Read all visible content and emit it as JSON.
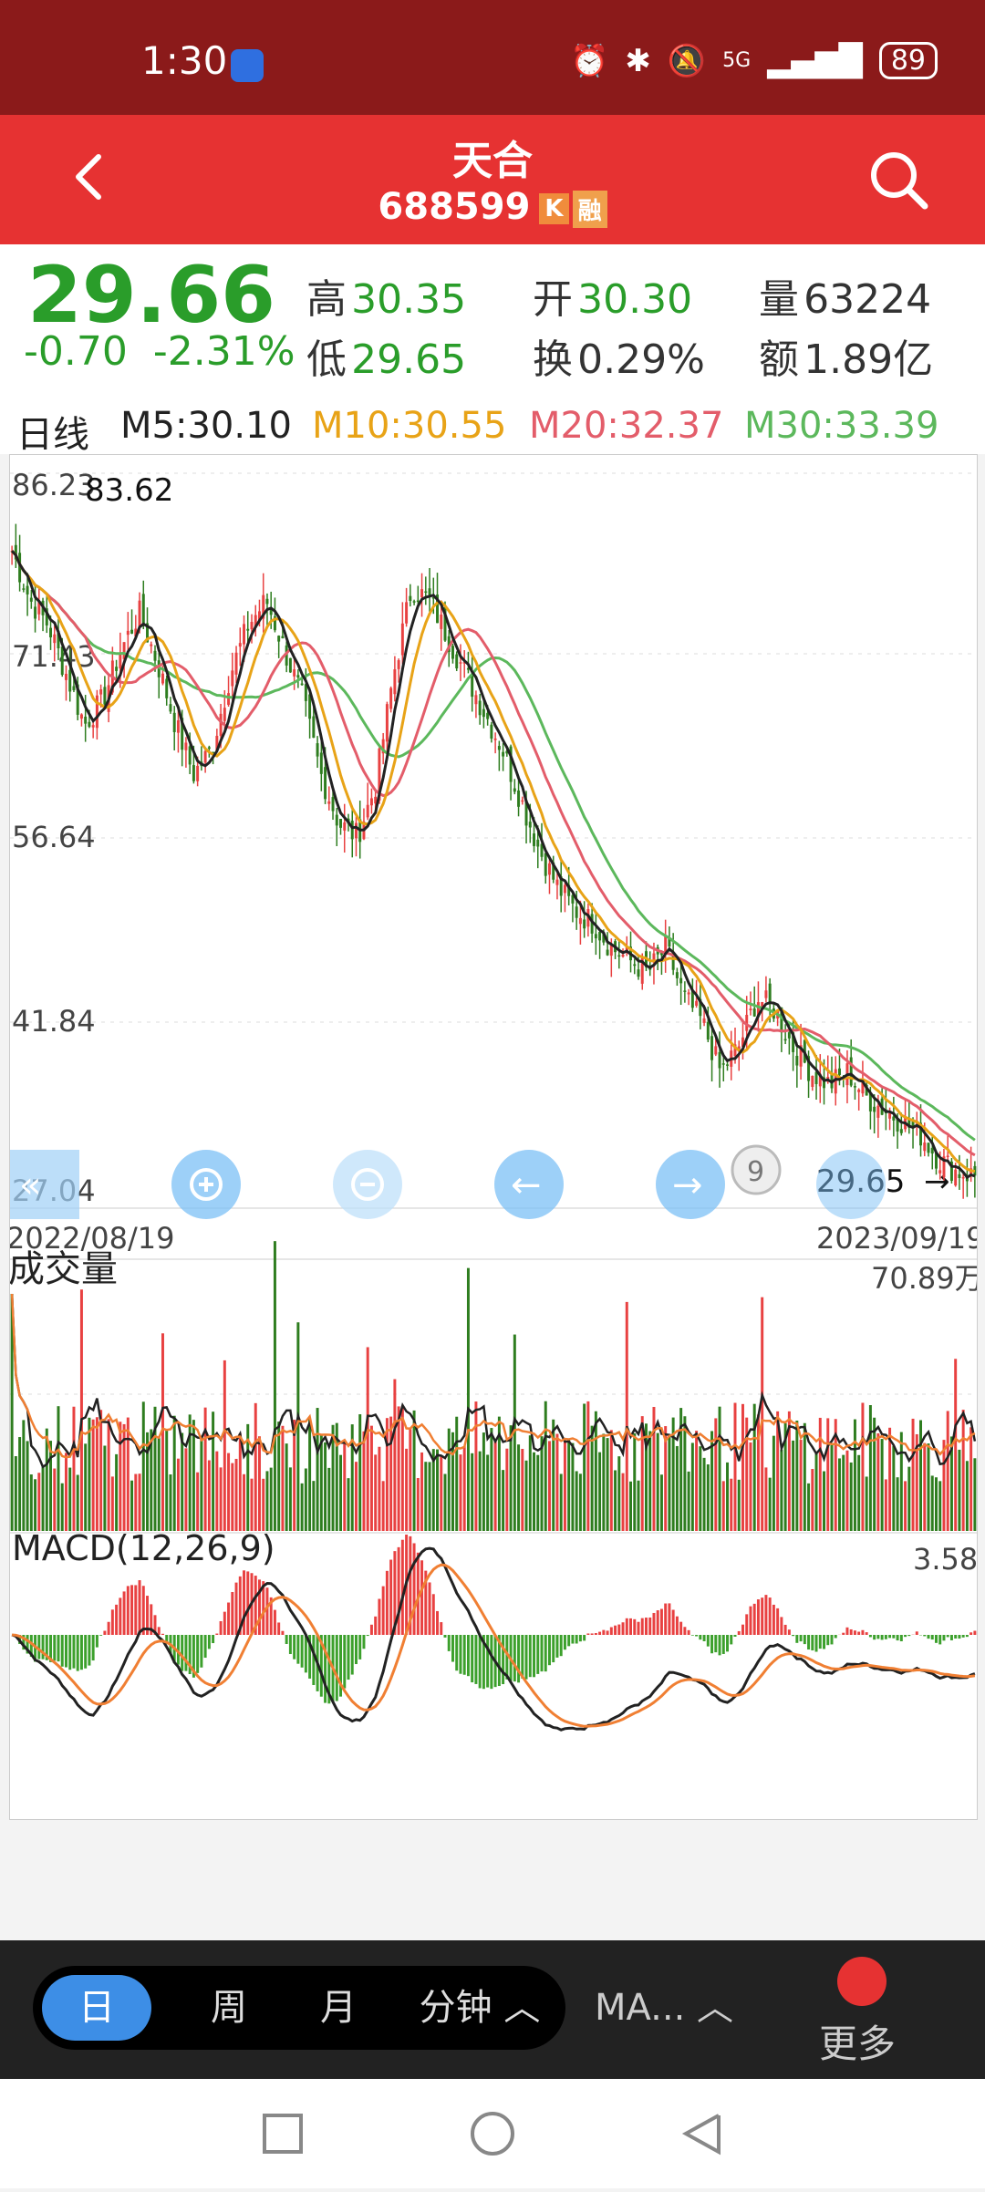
{
  "status_bar": {
    "time": "1:30",
    "network": "5G",
    "battery": "89"
  },
  "header": {
    "stock_name": "天合",
    "stock_code": "688599",
    "tag_k": "K",
    "tag_rong": "融"
  },
  "quote": {
    "price": "29.66",
    "change": "-0.70",
    "change_pct": "-2.31%",
    "high_label": "高",
    "high": "30.35",
    "low_label": "低",
    "low": "29.65",
    "open_label": "开",
    "open": "30.30",
    "turnover_label": "换",
    "turnover": "0.29%",
    "volume_label": "量",
    "volume": "63224",
    "amount_label": "额",
    "amount": "1.89亿"
  },
  "ma_legend": {
    "period": "日线",
    "m5": "M5:30.10",
    "m10": "M10:30.55",
    "m20": "M20:32.37",
    "m30": "M30:33.39",
    "colors": {
      "m5": "#222222",
      "m10": "#e8a317",
      "m20": "#e35d6a",
      "m30": "#5cb85c"
    }
  },
  "chart_data": [
    {
      "type": "candlestick",
      "y_ticks": [
        "86.23",
        "71.43",
        "56.64",
        "41.84",
        "27.04"
      ],
      "max_label": "83.62",
      "min_label": "29.65",
      "start_date": "2022/08/19",
      "end_date": "2023/09/19",
      "ylim": [
        27.04,
        86.23
      ],
      "close_series": [
        80,
        76,
        74,
        70,
        66,
        68,
        72,
        75,
        71,
        66,
        62,
        64,
        70,
        74,
        76,
        72,
        68,
        62,
        58,
        57,
        61,
        70,
        77,
        76,
        73,
        70,
        67,
        64,
        60,
        56,
        53,
        51,
        50,
        48,
        47,
        46,
        48,
        44,
        42,
        38,
        40,
        44,
        43,
        40,
        38,
        37,
        38,
        36,
        35,
        34,
        33,
        31,
        30,
        29.66
      ]
    },
    {
      "type": "bar",
      "title": "成交量",
      "max_label": "70.89万"
    },
    {
      "type": "macd",
      "title": "MACD(12,26,9)",
      "max_label": "3.58"
    }
  ],
  "controls": {
    "zoom_in": "zoom-in",
    "zoom_out": "zoom-out",
    "prev": "prev",
    "next": "next"
  },
  "toolbar": {
    "day": "日",
    "week": "周",
    "month": "月",
    "minute": "分钟 ︿",
    "ma": "MA... ︿",
    "more": "更多"
  }
}
